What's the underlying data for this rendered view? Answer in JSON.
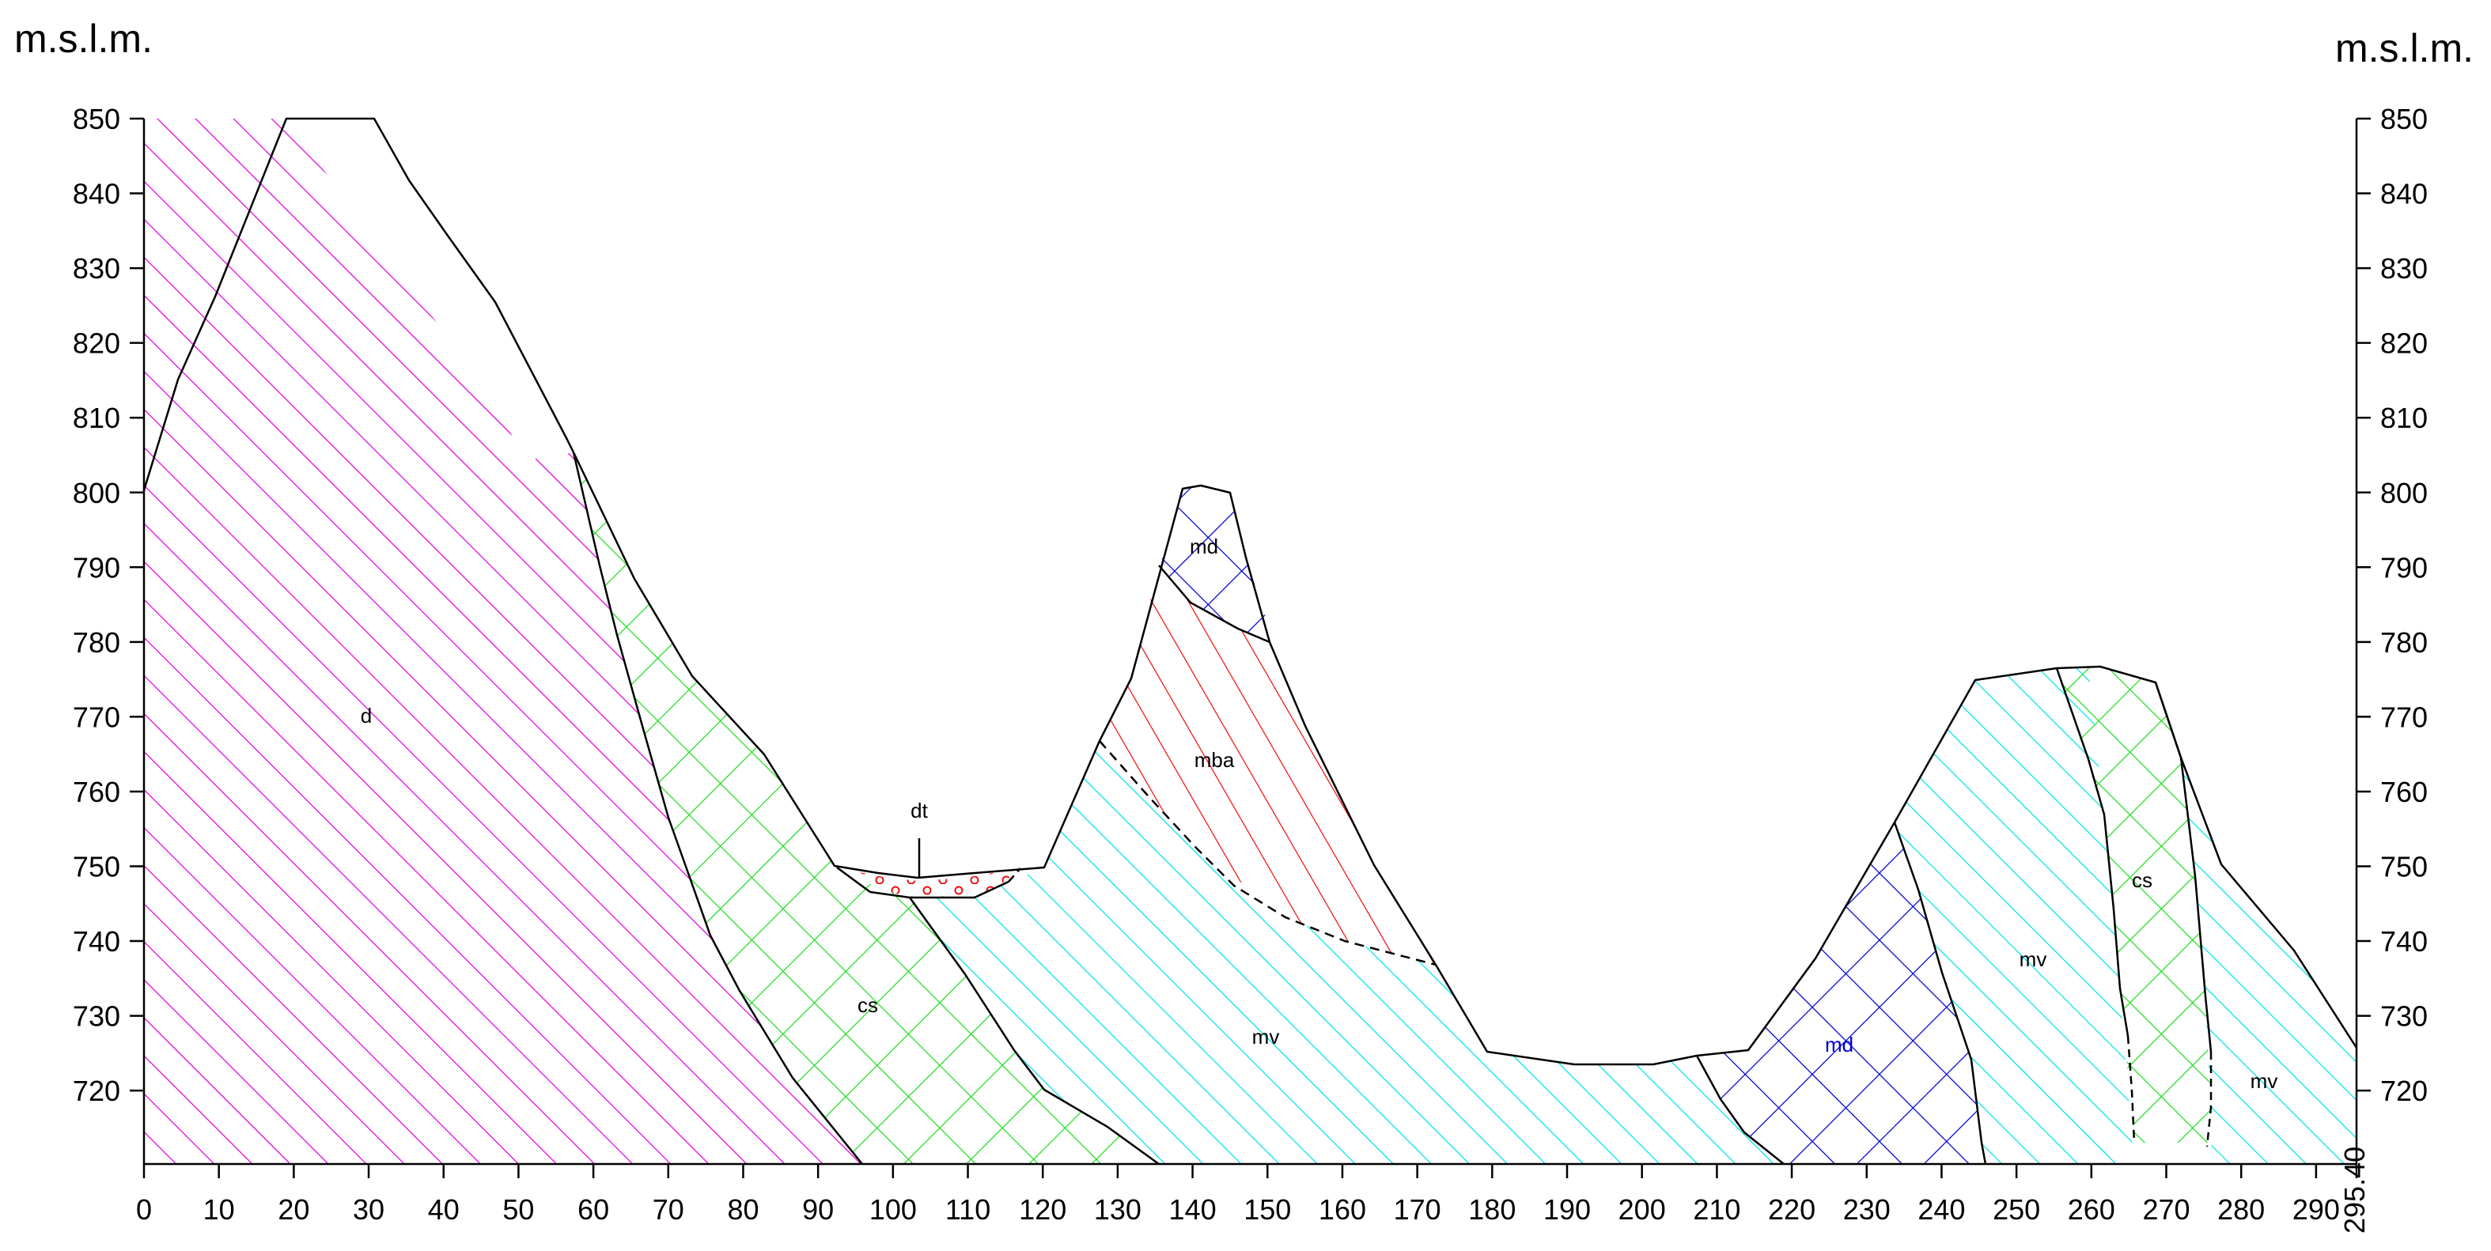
{
  "unit_left": "m.s.l.m.",
  "unit_right": "m.s.l.m.",
  "x_end_label": "295.40",
  "y_ticks": [
    "850",
    "840",
    "830",
    "820",
    "810",
    "800",
    "790",
    "780",
    "770",
    "760",
    "750",
    "740",
    "730",
    "720"
  ],
  "x_ticks": [
    "0",
    "10",
    "20",
    "30",
    "40",
    "50",
    "60",
    "70",
    "80",
    "90",
    "100",
    "110",
    "120",
    "130",
    "140",
    "150",
    "160",
    "170",
    "180",
    "190",
    "200",
    "210",
    "220",
    "230",
    "240",
    "250",
    "260",
    "270",
    "280",
    "290"
  ],
  "labels": {
    "d": "d",
    "dt": "dt",
    "md_top": "md",
    "mba": "mba",
    "cs_left": "cs",
    "mv_center": "mv",
    "md_right": "md",
    "mv_right": "mv",
    "cs_right": "cs",
    "mv_far": "mv"
  },
  "colors": {
    "d": "#e000e0",
    "cs": "#22dd22",
    "mv": "#00e5e5",
    "md": "#0000cc",
    "mba": "#ee1111",
    "dt": "#ee1111",
    "line": "#000000"
  }
}
